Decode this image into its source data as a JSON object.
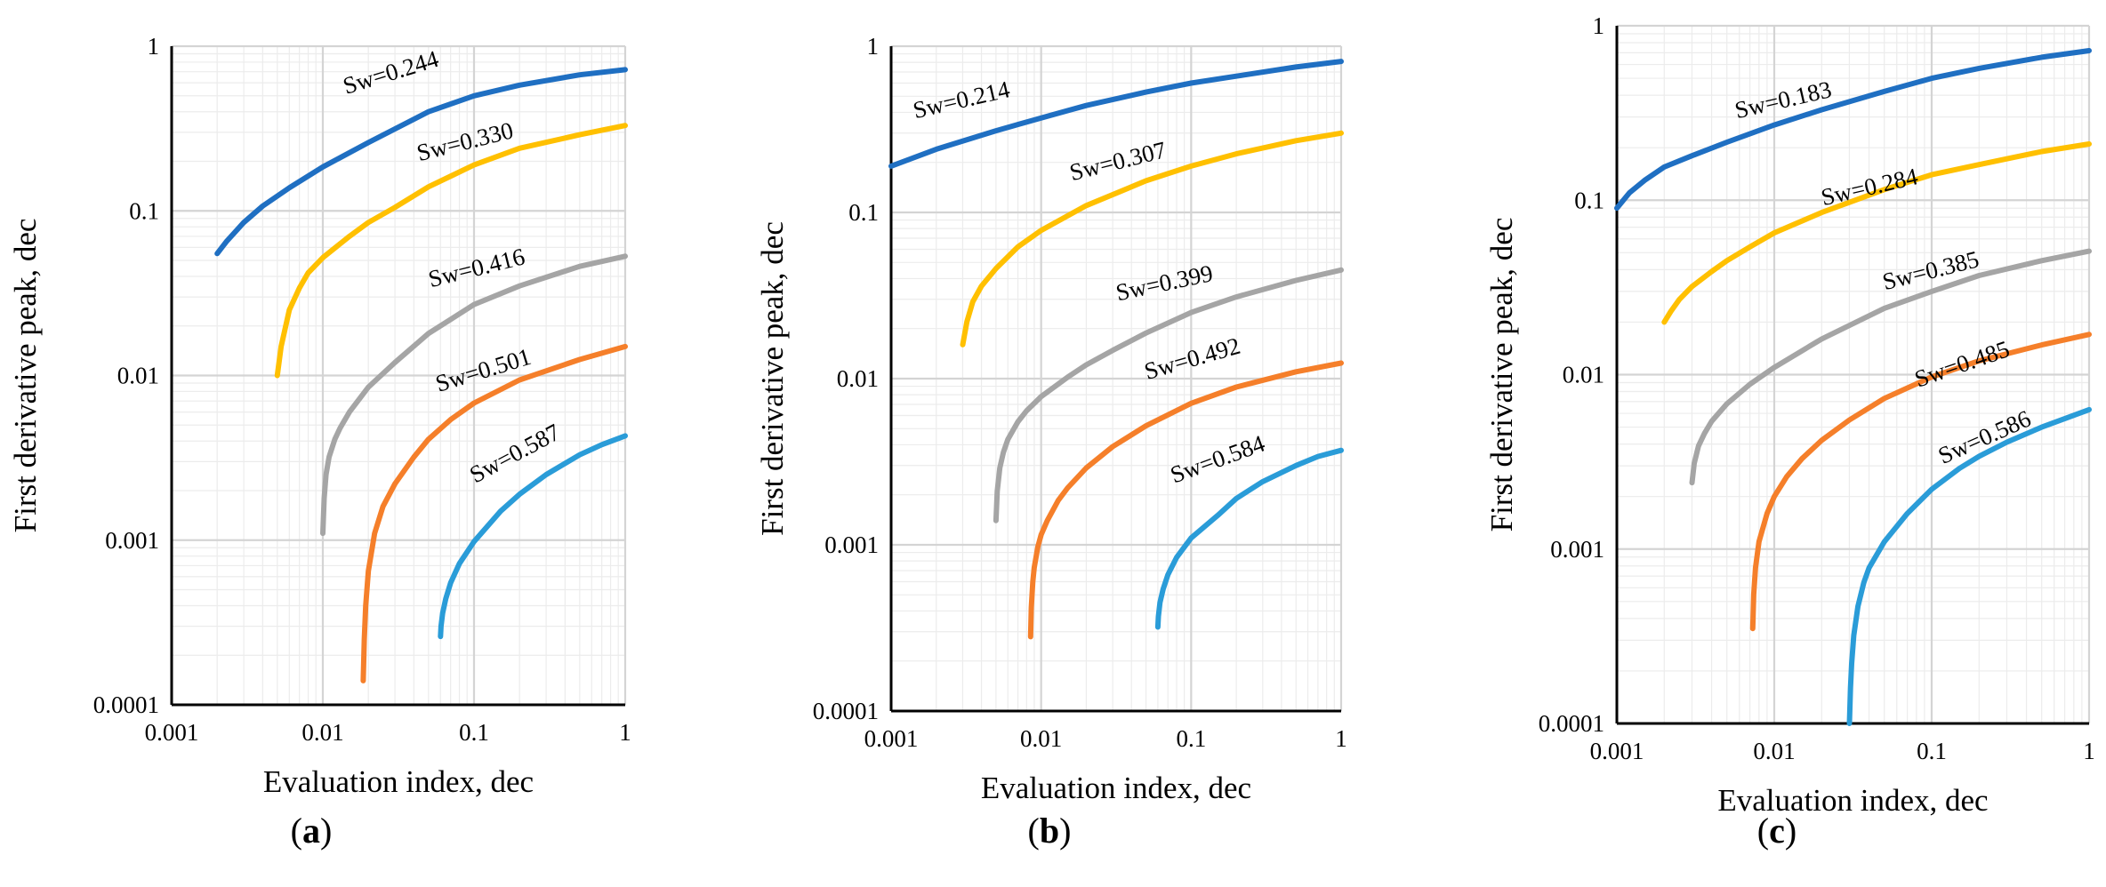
{
  "colors": {
    "dark_blue": "#1f6fc2",
    "yellow": "#ffc000",
    "gray": "#a5a5a5",
    "orange": "#f57f2a",
    "light_blue": "#2a9cd8",
    "grid_major": "#d4d4d4",
    "grid_minor": "#ececec",
    "axis": "#000000"
  },
  "chart_data": [
    {
      "type": "line",
      "panel_label": "a",
      "title": "",
      "xlabel": "Evaluation index, dec",
      "ylabel": "First derivative peak, dec",
      "xscale": "log",
      "yscale": "log",
      "xlim": [
        0.001,
        1
      ],
      "ylim": [
        0.0001,
        1
      ],
      "x_tick_labels": [
        "0.001",
        "0.01",
        "0.1",
        "1"
      ],
      "y_tick_labels": [
        "0.0001",
        "0.001",
        "0.01",
        "0.1",
        "1"
      ],
      "grid": true,
      "legend": "none",
      "series": [
        {
          "name": "Sw=0.244",
          "color": "#1f6fc2",
          "x": [
            0.002,
            0.0023,
            0.003,
            0.004,
            0.006,
            0.01,
            0.02,
            0.05,
            0.1,
            0.2,
            0.5,
            1
          ],
          "y": [
            0.055,
            0.065,
            0.085,
            0.107,
            0.138,
            0.185,
            0.26,
            0.4,
            0.5,
            0.58,
            0.67,
            0.72
          ]
        },
        {
          "name": "Sw=0.330",
          "color": "#ffc000",
          "x": [
            0.005,
            0.0053,
            0.006,
            0.007,
            0.008,
            0.01,
            0.015,
            0.02,
            0.03,
            0.05,
            0.1,
            0.2,
            0.5,
            1
          ],
          "y": [
            0.01,
            0.015,
            0.025,
            0.034,
            0.042,
            0.052,
            0.07,
            0.085,
            0.105,
            0.14,
            0.19,
            0.24,
            0.29,
            0.33
          ]
        },
        {
          "name": "Sw=0.416",
          "color": "#a5a5a5",
          "x": [
            0.01,
            0.0102,
            0.0105,
            0.011,
            0.012,
            0.013,
            0.015,
            0.02,
            0.03,
            0.05,
            0.1,
            0.2,
            0.5,
            1
          ],
          "y": [
            0.0011,
            0.0018,
            0.0025,
            0.0032,
            0.0041,
            0.0048,
            0.006,
            0.0085,
            0.012,
            0.018,
            0.027,
            0.035,
            0.046,
            0.053
          ]
        },
        {
          "name": "Sw=0.501",
          "color": "#f57f2a",
          "x": [
            0.0185,
            0.0188,
            0.0192,
            0.02,
            0.022,
            0.025,
            0.03,
            0.04,
            0.05,
            0.07,
            0.1,
            0.2,
            0.5,
            1
          ],
          "y": [
            0.00014,
            0.00025,
            0.0004,
            0.00065,
            0.0011,
            0.0016,
            0.0022,
            0.0032,
            0.0041,
            0.0054,
            0.0068,
            0.0094,
            0.0125,
            0.015
          ]
        },
        {
          "name": "Sw=0.587",
          "color": "#2a9cd8",
          "x": [
            0.06,
            0.0605,
            0.062,
            0.065,
            0.07,
            0.08,
            0.1,
            0.15,
            0.2,
            0.3,
            0.5,
            0.7,
            1
          ],
          "y": [
            0.00026,
            0.0003,
            0.00036,
            0.00044,
            0.00055,
            0.00072,
            0.00098,
            0.0015,
            0.0019,
            0.0025,
            0.0033,
            0.0038,
            0.0043
          ]
        }
      ]
    },
    {
      "type": "line",
      "panel_label": "b",
      "title": "",
      "xlabel": "Evaluation index, dec",
      "ylabel": "First derivative peak, dec",
      "xscale": "log",
      "yscale": "log",
      "xlim": [
        0.001,
        1
      ],
      "ylim": [
        0.0001,
        1
      ],
      "x_tick_labels": [
        "0.001",
        "0.01",
        "0.1",
        "1"
      ],
      "y_tick_labels": [
        "0.0001",
        "0.001",
        "0.01",
        "0.1",
        "1"
      ],
      "grid": true,
      "legend": "none",
      "series": [
        {
          "name": "Sw=0.214",
          "color": "#1f6fc2",
          "x": [
            0.001,
            0.002,
            0.005,
            0.01,
            0.02,
            0.05,
            0.1,
            0.2,
            0.5,
            1
          ],
          "y": [
            0.19,
            0.24,
            0.31,
            0.37,
            0.44,
            0.53,
            0.6,
            0.66,
            0.75,
            0.81
          ]
        },
        {
          "name": "Sw=0.307",
          "color": "#ffc000",
          "x": [
            0.003,
            0.0032,
            0.0035,
            0.004,
            0.005,
            0.007,
            0.01,
            0.02,
            0.05,
            0.1,
            0.2,
            0.5,
            1
          ],
          "y": [
            0.016,
            0.022,
            0.029,
            0.036,
            0.046,
            0.062,
            0.078,
            0.11,
            0.155,
            0.19,
            0.225,
            0.27,
            0.3
          ]
        },
        {
          "name": "Sw=0.399",
          "color": "#a5a5a5",
          "x": [
            0.005,
            0.0051,
            0.0053,
            0.0056,
            0.006,
            0.007,
            0.008,
            0.01,
            0.015,
            0.02,
            0.03,
            0.05,
            0.1,
            0.2,
            0.5,
            1
          ],
          "y": [
            0.0014,
            0.0021,
            0.0029,
            0.0036,
            0.0043,
            0.0055,
            0.0064,
            0.0078,
            0.0102,
            0.0121,
            0.0148,
            0.0188,
            0.025,
            0.031,
            0.039,
            0.045
          ]
        },
        {
          "name": "Sw=0.492",
          "color": "#f57f2a",
          "x": [
            0.0085,
            0.0086,
            0.0088,
            0.009,
            0.0095,
            0.01,
            0.011,
            0.013,
            0.015,
            0.02,
            0.03,
            0.05,
            0.1,
            0.2,
            0.5,
            1
          ],
          "y": [
            0.00028,
            0.00042,
            0.0006,
            0.00073,
            0.00097,
            0.00115,
            0.0014,
            0.00185,
            0.0022,
            0.0029,
            0.0039,
            0.0052,
            0.0071,
            0.0089,
            0.011,
            0.0124
          ]
        },
        {
          "name": "Sw=0.584",
          "color": "#2a9cd8",
          "x": [
            0.06,
            0.0605,
            0.062,
            0.065,
            0.07,
            0.08,
            0.1,
            0.15,
            0.2,
            0.3,
            0.5,
            0.7,
            1
          ],
          "y": [
            0.00032,
            0.00037,
            0.00045,
            0.00054,
            0.00066,
            0.00084,
            0.0011,
            0.0015,
            0.0019,
            0.0024,
            0.003,
            0.0034,
            0.0037
          ]
        }
      ]
    },
    {
      "type": "line",
      "panel_label": "c",
      "title": "",
      "xlabel": "Evaluation index, dec",
      "ylabel": "First derivative peak, dec",
      "xscale": "log",
      "yscale": "log",
      "xlim": [
        0.001,
        1
      ],
      "ylim": [
        0.0001,
        1
      ],
      "x_tick_labels": [
        "0.001",
        "0.01",
        "0.1",
        "1"
      ],
      "y_tick_labels": [
        "0.0001",
        "0.001",
        "0.01",
        "0.1",
        "1"
      ],
      "grid": true,
      "legend": "none",
      "series": [
        {
          "name": "Sw=0.183",
          "color": "#1f6fc2",
          "x": [
            0.001,
            0.0012,
            0.0015,
            0.002,
            0.003,
            0.005,
            0.01,
            0.02,
            0.05,
            0.1,
            0.2,
            0.5,
            1
          ],
          "y": [
            0.09,
            0.11,
            0.13,
            0.155,
            0.18,
            0.215,
            0.27,
            0.33,
            0.42,
            0.5,
            0.57,
            0.66,
            0.72
          ]
        },
        {
          "name": "Sw=0.284",
          "color": "#ffc000",
          "x": [
            0.002,
            0.0022,
            0.0025,
            0.003,
            0.004,
            0.005,
            0.007,
            0.01,
            0.02,
            0.05,
            0.1,
            0.2,
            0.5,
            1
          ],
          "y": [
            0.02,
            0.023,
            0.027,
            0.032,
            0.039,
            0.045,
            0.054,
            0.065,
            0.085,
            0.115,
            0.14,
            0.16,
            0.19,
            0.21
          ]
        },
        {
          "name": "Sw=0.385",
          "color": "#a5a5a5",
          "x": [
            0.003,
            0.0031,
            0.0033,
            0.0036,
            0.004,
            0.005,
            0.007,
            0.01,
            0.02,
            0.05,
            0.1,
            0.2,
            0.5,
            1
          ],
          "y": [
            0.0024,
            0.0031,
            0.0039,
            0.0046,
            0.0054,
            0.0068,
            0.0088,
            0.011,
            0.016,
            0.024,
            0.03,
            0.037,
            0.045,
            0.051
          ]
        },
        {
          "name": "Sw=0.485",
          "color": "#f57f2a",
          "x": [
            0.0073,
            0.0074,
            0.0076,
            0.008,
            0.009,
            0.01,
            0.012,
            0.015,
            0.02,
            0.03,
            0.05,
            0.1,
            0.2,
            0.5,
            1
          ],
          "y": [
            0.00035,
            0.00055,
            0.00078,
            0.0011,
            0.0016,
            0.002,
            0.0026,
            0.0033,
            0.0042,
            0.0055,
            0.0073,
            0.0097,
            0.012,
            0.0148,
            0.017
          ]
        },
        {
          "name": "Sw=0.586",
          "color": "#2a9cd8",
          "x": [
            0.03,
            0.0305,
            0.031,
            0.032,
            0.034,
            0.037,
            0.04,
            0.05,
            0.07,
            0.1,
            0.15,
            0.2,
            0.3,
            0.5,
            1
          ],
          "y": [
            0.0001,
            0.00016,
            0.00022,
            0.00032,
            0.00047,
            0.00064,
            0.00078,
            0.0011,
            0.0016,
            0.0022,
            0.0029,
            0.0034,
            0.0041,
            0.005,
            0.0063
          ]
        }
      ]
    }
  ]
}
